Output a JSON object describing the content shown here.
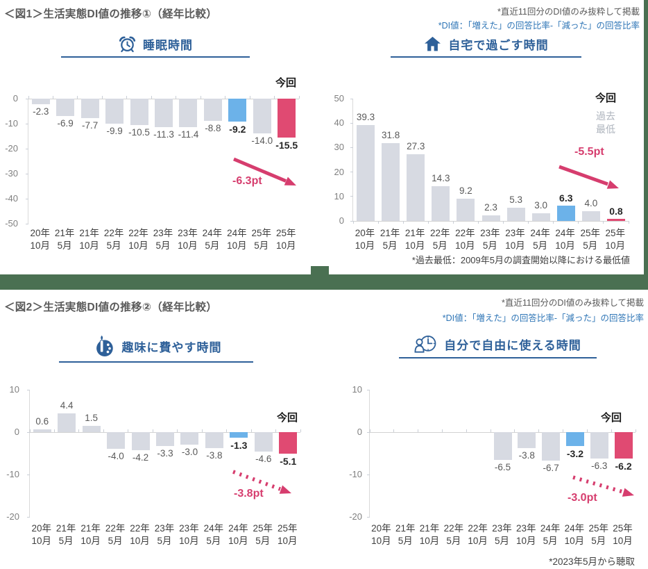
{
  "sections": [
    {
      "title": "＜図1＞生活実態DI値の推移①（経年比較）",
      "note1": "*直近11回分のDI値のみ抜粋して掲載",
      "note2": "*DI値：「増えた」の回答比率-「減った」の回答比率"
    },
    {
      "title": "＜図2＞生活実態DI値の推移②（経年比較）",
      "note1": "*直近11回分のDI値のみ抜粋して掲載",
      "note2": "*DI値：「増えた」の回答比率-「減った」の回答比率"
    }
  ],
  "chart_data": [
    {
      "type": "bar",
      "title": "睡眠時間",
      "icon": "alarm-clock-icon",
      "categories": [
        "20年\n10月",
        "21年\n5月",
        "21年\n10月",
        "22年\n5月",
        "22年\n10月",
        "23年\n5月",
        "23年\n10月",
        "24年\n5月",
        "24年\n10月",
        "25年\n5月",
        "25年\n10月"
      ],
      "values": [
        -2.3,
        -6.9,
        -7.7,
        -9.9,
        -10.5,
        -11.3,
        -11.4,
        -8.8,
        -9.2,
        -14.0,
        -15.5
      ],
      "ylim": [
        -50,
        0
      ],
      "yticks": [
        0,
        -10,
        -20,
        -30,
        -40,
        -50
      ],
      "blue_index": 8,
      "pink_index": 10,
      "current_label": "今回",
      "annotation": "-6.3pt",
      "annotation_style": "solid"
    },
    {
      "type": "bar",
      "title": "自宅で過ごす時間",
      "icon": "home-icon",
      "categories": [
        "20年\n10月",
        "21年\n5月",
        "21年\n10月",
        "22年\n5月",
        "22年\n10月",
        "23年\n5月",
        "23年\n10月",
        "24年\n5月",
        "24年\n10月",
        "25年\n5月",
        "25年\n10月"
      ],
      "values": [
        39.3,
        31.8,
        27.3,
        14.3,
        9.2,
        2.3,
        5.3,
        3.0,
        6.3,
        4.0,
        0.8
      ],
      "ylim": [
        0,
        50
      ],
      "yticks": [
        0,
        10,
        20,
        30,
        40,
        50
      ],
      "blue_index": 8,
      "pink_index": 10,
      "legend": {
        "current": "今回",
        "past_low": "過去\n最低"
      },
      "annotation": "-5.5pt",
      "annotation_style": "solid",
      "footnote": "*過去最低：2009年5月の調査開始以降における最低値"
    },
    {
      "type": "bar",
      "title": "趣味に費やす時間",
      "icon": "palette-icon",
      "categories": [
        "20年\n10月",
        "21年\n5月",
        "21年\n10月",
        "22年\n5月",
        "22年\n10月",
        "23年\n5月",
        "23年\n10月",
        "24年\n5月",
        "24年\n10月",
        "25年\n5月",
        "25年\n10月"
      ],
      "values": [
        0.6,
        4.4,
        1.5,
        -4.0,
        -4.2,
        -3.3,
        -3.0,
        -3.8,
        -1.3,
        -4.6,
        -5.1
      ],
      "ylim": [
        -20,
        10
      ],
      "yticks": [
        10,
        0,
        -10,
        -20
      ],
      "blue_index": 8,
      "pink_index": 10,
      "current_label": "今回",
      "annotation": "-3.8pt",
      "annotation_style": "dashed"
    },
    {
      "type": "bar",
      "title": "自分で自由に使える時間",
      "icon": "person-clock-icon",
      "categories": [
        "20年\n10月",
        "21年\n5月",
        "21年\n10月",
        "22年\n5月",
        "22年\n10月",
        "23年\n5月",
        "23年\n10月",
        "24年\n5月",
        "24年\n10月",
        "25年\n5月",
        "25年\n10月"
      ],
      "values": [
        null,
        null,
        null,
        null,
        null,
        -6.5,
        -3.8,
        -6.7,
        -3.2,
        -6.3,
        -6.2
      ],
      "ylim": [
        -20,
        10
      ],
      "yticks": [
        10,
        0,
        -10,
        -20
      ],
      "blue_index": 8,
      "pink_index": 10,
      "current_label": "今回",
      "annotation": "-3.0pt",
      "annotation_style": "dashed",
      "footnote": "*2023年5月から聴取"
    }
  ],
  "colors": {
    "bar_gray": "#d7dae2",
    "bar_blue": "#6cb2e9",
    "bar_pink": "#e04a72",
    "accent_pink": "#d63d6e",
    "title_blue": "#2e6099",
    "note_blue": "#2e75b6",
    "green": "#4a7052"
  }
}
